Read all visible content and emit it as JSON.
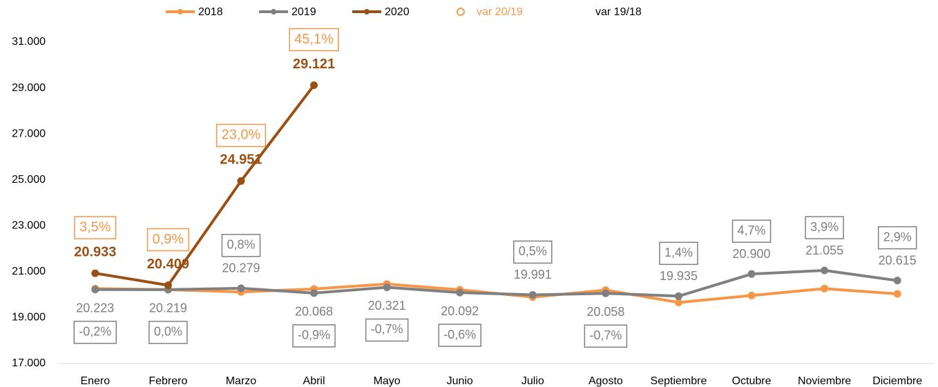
{
  "chart_data": {
    "type": "line",
    "categories": [
      "Enero",
      "Febrero",
      "Marzo",
      "Abril",
      "Mayo",
      "Junio",
      "Julio",
      "Agosto",
      "Septiembre",
      "Octubre",
      "Noviembre",
      "Diciembre"
    ],
    "series": [
      {
        "name": "2018",
        "color": "#f79646",
        "values": [
          20263,
          20219,
          20118,
          20250,
          20464,
          20213,
          19892,
          20199,
          19660,
          19962,
          20265,
          20034
        ]
      },
      {
        "name": "2019",
        "color": "#808080",
        "values": [
          20223,
          20219,
          20279,
          20068,
          20321,
          20092,
          19991,
          20058,
          19935,
          20900,
          21055,
          20615
        ],
        "value_labels": [
          "20.223",
          "20.219",
          "20.279",
          "20.068",
          "20.321",
          "20.092",
          "19.991",
          "20.058",
          "19.935",
          "20.900",
          "21.055",
          "20.615"
        ]
      },
      {
        "name": "2020",
        "color": "#9c4f13",
        "values": [
          20933,
          20409,
          24951,
          29121,
          null,
          null,
          null,
          null,
          null,
          null,
          null,
          null
        ],
        "value_labels": [
          "20.933",
          "20.409",
          "24.951",
          "29.121",
          null,
          null,
          null,
          null,
          null,
          null,
          null,
          null
        ]
      }
    ],
    "annotations": [
      {
        "name": "var 20/19",
        "color": "#f79646",
        "values": [
          3.5,
          0.9,
          23.0,
          45.1,
          null,
          null,
          null,
          null,
          null,
          null,
          null,
          null
        ],
        "value_labels": [
          "3,5%",
          "0,9%",
          "23,0%",
          "45,1%",
          null,
          null,
          null,
          null,
          null,
          null,
          null,
          null
        ]
      },
      {
        "name": "var 19/18",
        "color": "#808080",
        "values": [
          -0.2,
          0.0,
          0.8,
          -0.9,
          -0.7,
          -0.6,
          0.5,
          -0.7,
          1.4,
          4.7,
          3.9,
          2.9
        ],
        "value_labels": [
          "-0,2%",
          "0,0%",
          "0,8%",
          "-0,9%",
          "-0,7%",
          "-0,6%",
          "0,5%",
          "-0,7%",
          "1,4%",
          "4,7%",
          "3,9%",
          "2,9%"
        ]
      }
    ],
    "ylim": [
      17000,
      31000
    ],
    "yticks": [
      {
        "value": 17000,
        "label": "17.000"
      },
      {
        "value": 19000,
        "label": "19.000"
      },
      {
        "value": 21000,
        "label": "21.000"
      },
      {
        "value": 23000,
        "label": "23.000"
      },
      {
        "value": 25000,
        "label": "25.000"
      },
      {
        "value": 27000,
        "label": "27.000"
      },
      {
        "value": 29000,
        "label": "29.000"
      },
      {
        "value": 31000,
        "label": "31.000"
      }
    ],
    "legend": "top"
  }
}
